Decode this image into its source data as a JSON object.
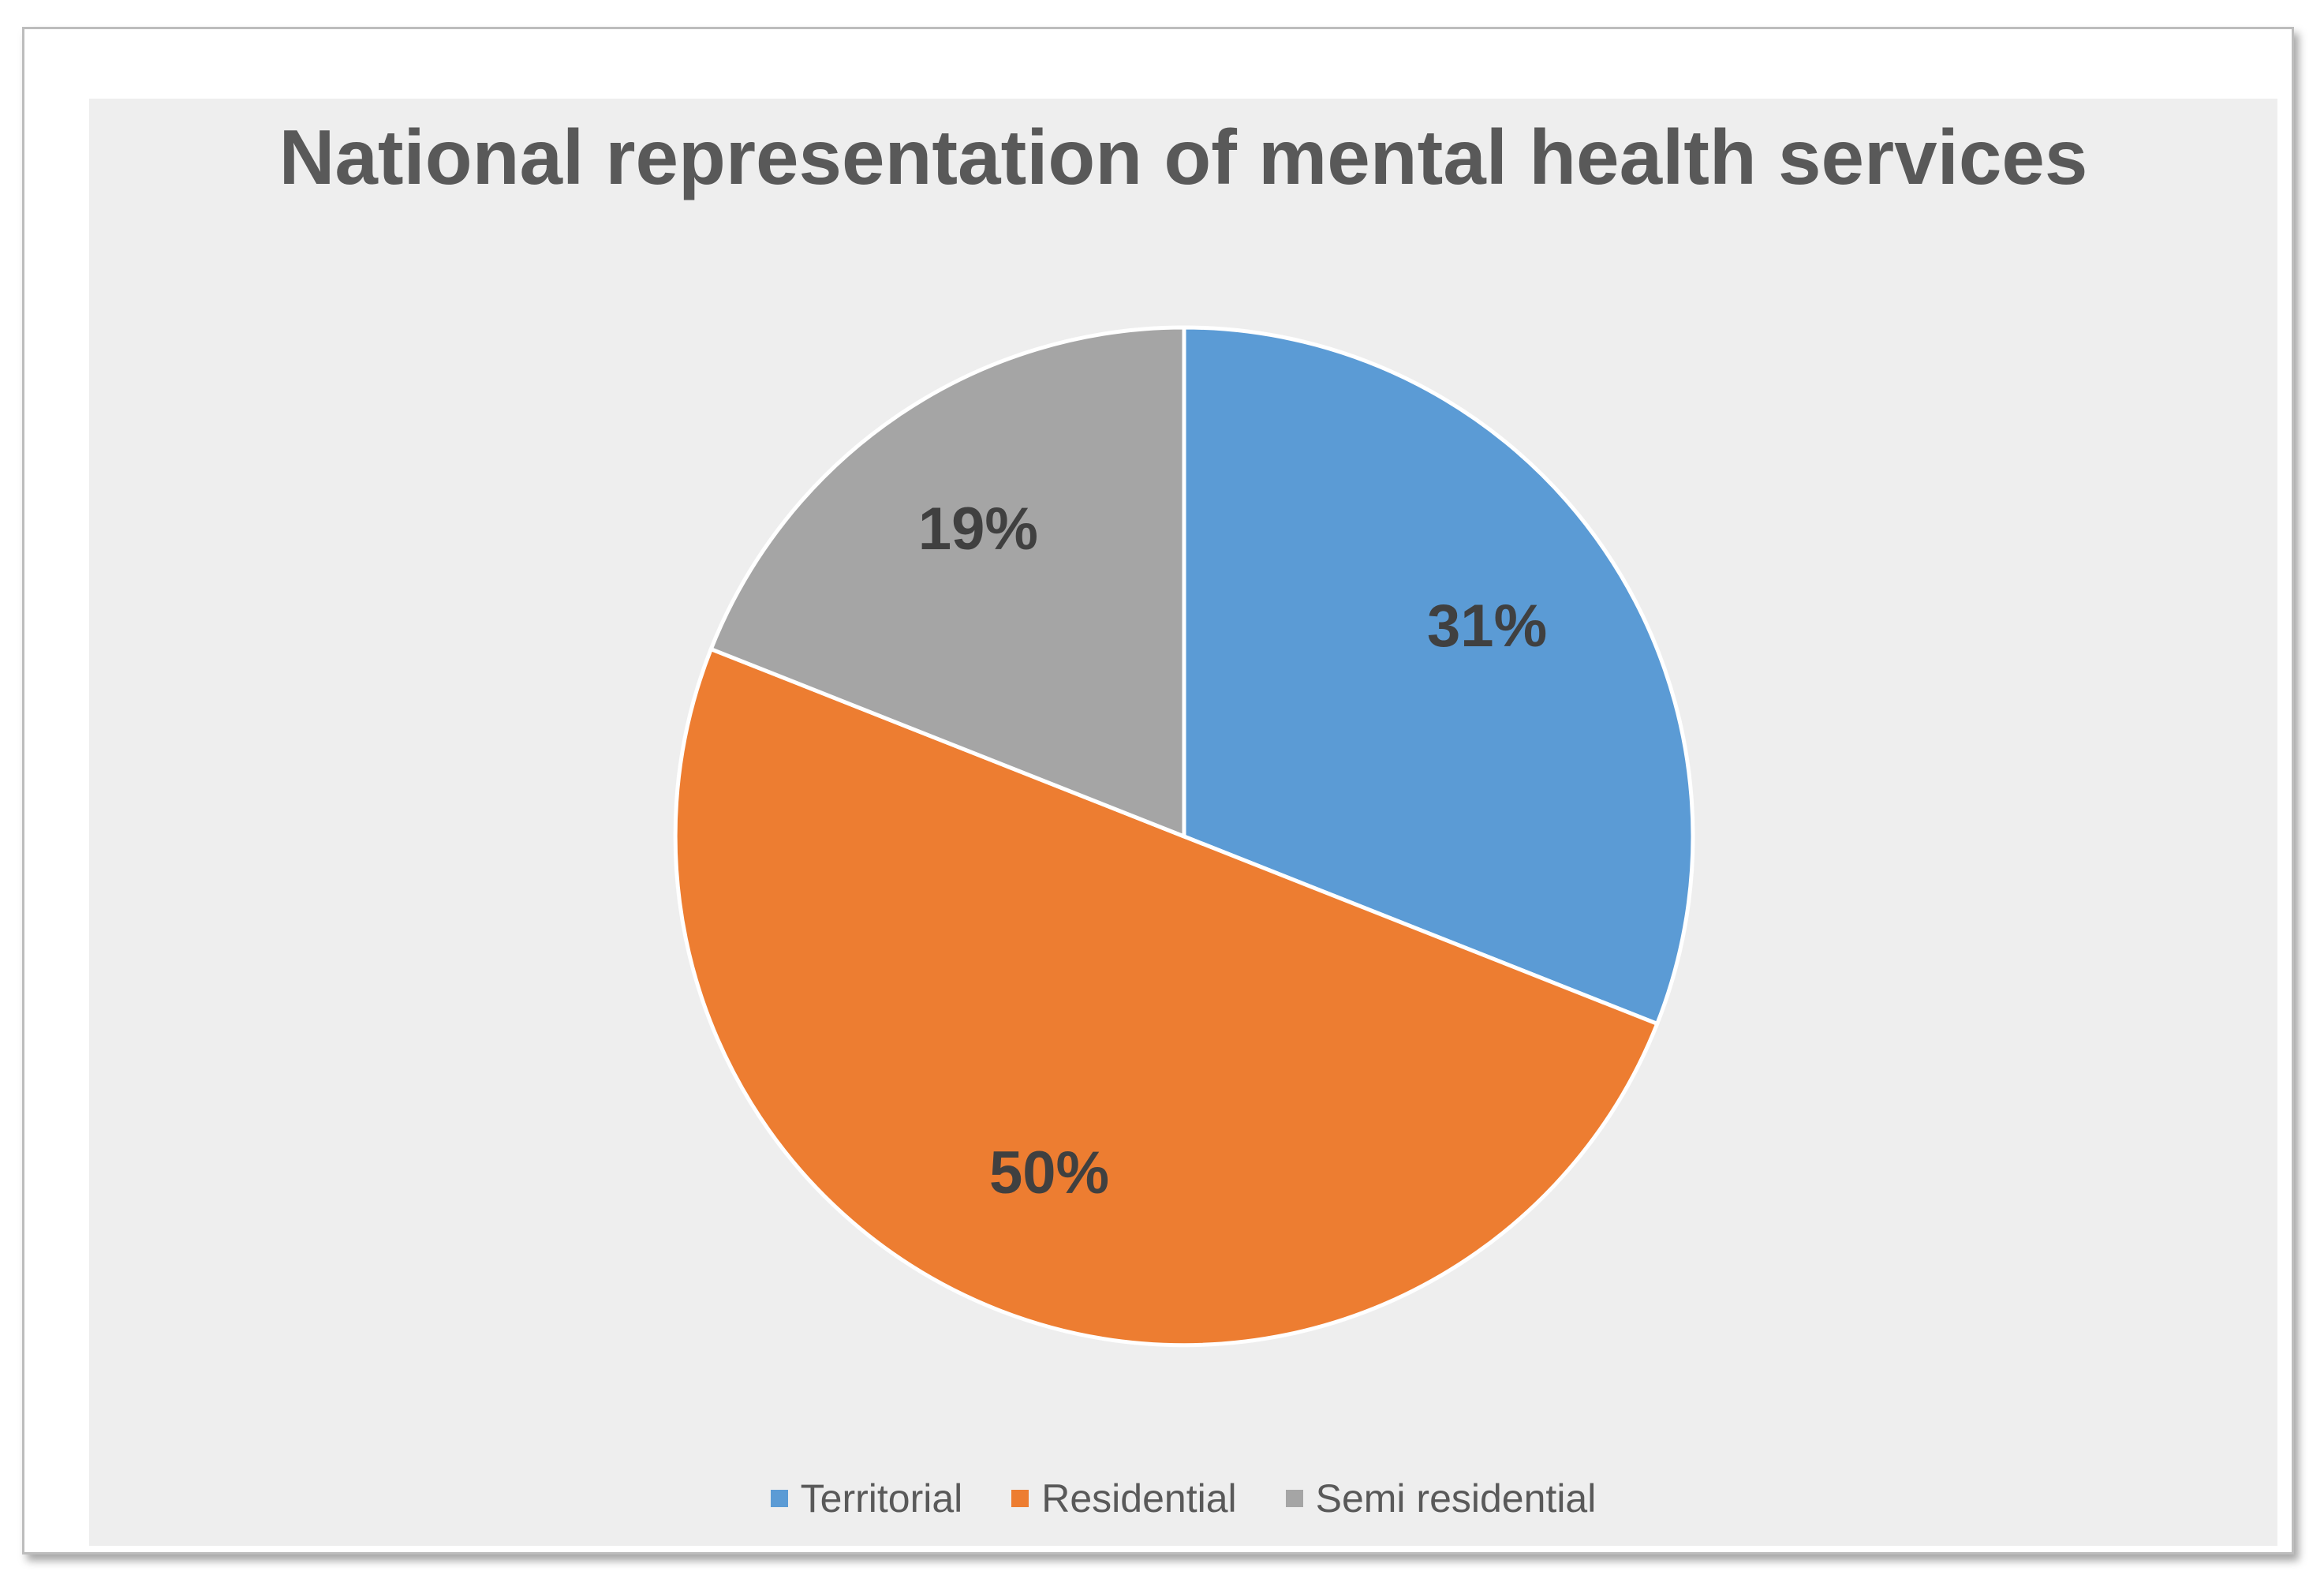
{
  "chart_data": {
    "type": "pie",
    "title": "National representation of mental health services",
    "categories": [
      "Territorial",
      "Residential",
      "Semi residential"
    ],
    "values": [
      31,
      50,
      19
    ],
    "labels": [
      "31%",
      "50%",
      "19%"
    ],
    "colors": [
      "#5B9BD5",
      "#ED7D31",
      "#A5A5A5"
    ],
    "legend_position": "bottom",
    "start_angle": "12 o'clock",
    "direction": "clockwise"
  }
}
